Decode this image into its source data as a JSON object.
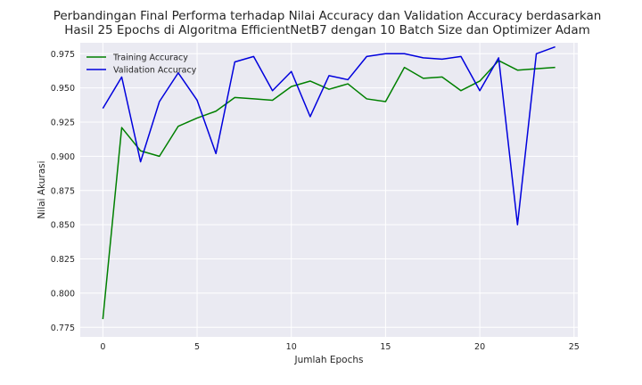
{
  "chart_data": {
    "type": "line",
    "title_line1": "Perbandingan Final Performa terhadap Nilai Accuracy dan Validation Accuracy berdasarkan",
    "title_line2": "Hasil 25 Epochs di Algoritma EfficientNetB7 dengan 10 Batch Size dan Optimizer Adam",
    "xlabel": "Jumlah Epochs",
    "ylabel": "Nilai Akurasi",
    "xlim": [
      -1.2,
      25.2
    ],
    "ylim": [
      0.768,
      0.983
    ],
    "xticks": [
      0,
      5,
      10,
      15,
      20,
      25
    ],
    "yticks": [
      0.775,
      0.8,
      0.825,
      0.85,
      0.875,
      0.9,
      0.925,
      0.95,
      0.975
    ],
    "ytick_labels": [
      "0.775",
      "0.800",
      "0.825",
      "0.850",
      "0.875",
      "0.900",
      "0.925",
      "0.950",
      "0.975"
    ],
    "x": [
      0,
      1,
      2,
      3,
      4,
      5,
      6,
      7,
      8,
      9,
      10,
      11,
      12,
      13,
      14,
      15,
      16,
      17,
      18,
      19,
      20,
      21,
      22,
      23,
      24
    ],
    "series": [
      {
        "name": "Training Accuracy",
        "color": "#008000",
        "values": [
          0.781,
          0.921,
          0.904,
          0.9,
          0.922,
          0.928,
          0.933,
          0.943,
          0.942,
          0.941,
          0.951,
          0.955,
          0.949,
          0.953,
          0.942,
          0.94,
          0.965,
          0.957,
          0.958,
          0.948,
          0.955,
          0.97,
          0.963,
          0.964,
          0.965
        ]
      },
      {
        "name": "Validation Accuracy",
        "color": "#0000dd",
        "values": [
          0.935,
          0.958,
          0.896,
          0.94,
          0.961,
          0.941,
          0.902,
          0.969,
          0.973,
          0.948,
          0.962,
          0.929,
          0.959,
          0.956,
          0.973,
          0.975,
          0.975,
          0.972,
          0.971,
          0.973,
          0.948,
          0.972,
          0.85,
          0.975,
          0.98
        ]
      }
    ],
    "grid": true,
    "legend_position": "top-left",
    "background": "#eaeaf2"
  }
}
